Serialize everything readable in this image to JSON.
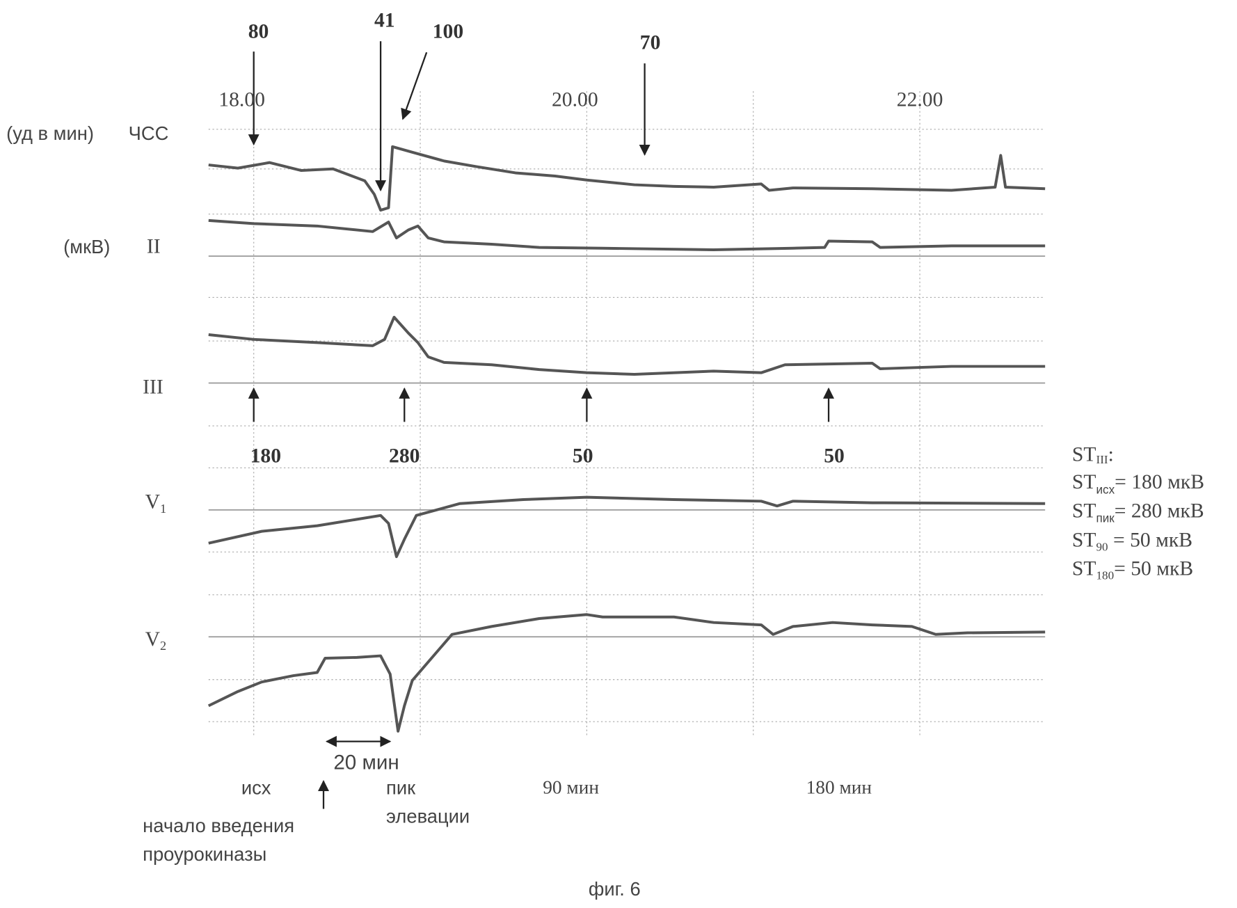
{
  "figure": {
    "hr_markers": [
      "80",
      "41",
      "100",
      "70"
    ],
    "times": [
      "18.00",
      "20.00",
      "22.00"
    ],
    "leads": {
      "hr_unit": "(уд в мин)",
      "hr": "ЧСС",
      "st_unit": "(мкВ)",
      "ii": "II",
      "iii": "III",
      "v1": {
        "main": "V",
        "sub": "1"
      },
      "v2": {
        "main": "V",
        "sub": "2"
      }
    },
    "st_values": [
      "180",
      "280",
      "50",
      "50"
    ],
    "legend": {
      "title": {
        "main": "ST",
        "sub": "III",
        "rest": ":"
      },
      "items": [
        {
          "main": "ST",
          "sub": "исх",
          "rest": "= 180 мкВ"
        },
        {
          "main": "ST",
          "sub": "пик",
          "rest": "= 280 мкВ"
        },
        {
          "main": "ST",
          "sub": "90",
          "rest": " = 50 мкВ"
        },
        {
          "main": "ST",
          "sub": "180",
          "rest": "= 50 мкВ"
        }
      ]
    },
    "annotations": {
      "interval": "20 мин",
      "baseline": "исх",
      "start": [
        "начало введения",
        "проурокиназы"
      ],
      "peak": [
        "пик",
        "элевации"
      ],
      "t90": "90 мин",
      "t180": "180 мин"
    },
    "caption": "фиг. 6"
  }
}
